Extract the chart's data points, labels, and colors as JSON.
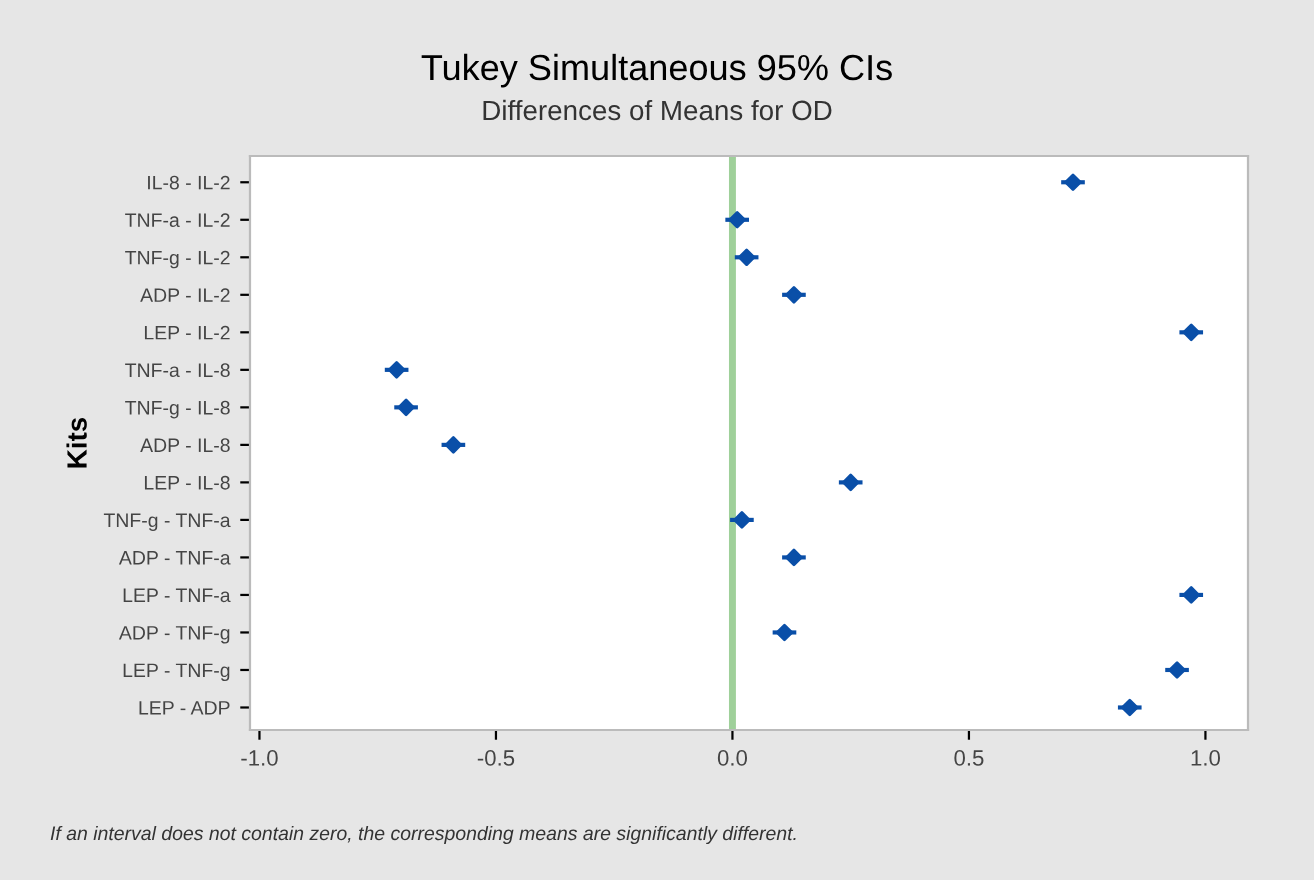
{
  "chart_data": {
    "type": "scatter",
    "orientation": "horizontal",
    "title": "Tukey Simultaneous 95% CIs",
    "subtitle": "Differences of Means for OD",
    "ylabel": "Kits",
    "categories": [
      "IL-8 - IL-2",
      "TNF-a - IL-2",
      "TNF-g - IL-2",
      "ADP - IL-2",
      "LEP - IL-2",
      "TNF-a - IL-8",
      "TNF-g - IL-8",
      "ADP - IL-8",
      "LEP - IL-8",
      "TNF-g - TNF-a",
      "ADP - TNF-a",
      "LEP - TNF-a",
      "ADP - TNF-g",
      "LEP - TNF-g",
      "LEP - ADP"
    ],
    "series": [
      {
        "color": "#0a4fa8",
        "values": [
          0.72,
          0.01,
          0.03,
          0.13,
          0.97,
          -0.71,
          -0.69,
          -0.59,
          0.25,
          0.02,
          0.13,
          0.97,
          0.11,
          0.94,
          0.84
        ],
        "errors": [
          0.025,
          0.025,
          0.025,
          0.025,
          0.025,
          0.025,
          0.025,
          0.025,
          0.025,
          0.025,
          0.025,
          0.025,
          0.025,
          0.025,
          0.025
        ]
      }
    ],
    "marker": "diamond",
    "xlim": [
      -1.02,
      1.09
    ],
    "xticks": [
      {
        "value": -1.0,
        "label": "-1.0"
      },
      {
        "value": -0.5,
        "label": "-0.5"
      },
      {
        "value": 0.0,
        "label": "0.0"
      },
      {
        "value": 0.5,
        "label": "0.5"
      },
      {
        "value": 1.0,
        "label": "1.0"
      }
    ],
    "ref_lines": [
      {
        "axis": "x",
        "value": 0,
        "color": "#9fd09a",
        "line_style": "solid"
      }
    ],
    "grid": false,
    "annotations": [
      "If an interval does not contain zero, the corresponding means are significantly different."
    ]
  }
}
